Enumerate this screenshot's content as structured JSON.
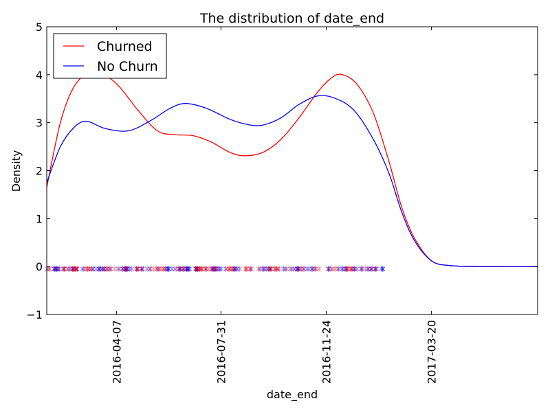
{
  "chart_data": {
    "type": "line",
    "title": "The distribution of date_end",
    "xlabel": "date_end",
    "ylabel": "Density",
    "xlim": [
      "2016-01-21",
      "2017-07-15"
    ],
    "ylim": [
      -1,
      5
    ],
    "x_ticks": [
      "2016-04-07",
      "2016-07-31",
      "2016-11-24",
      "2017-03-20"
    ],
    "y_ticks": [
      -1,
      0,
      1,
      2,
      3,
      4,
      5
    ],
    "legend_position": "upper-left",
    "grid": false,
    "rug_y": -0.05,
    "rug_range": [
      "2016-01-21",
      "2017-01-29"
    ],
    "series": [
      {
        "name": "Churned",
        "color": "#ff0000",
        "points": [
          [
            "2016-01-21",
            1.65
          ],
          [
            "2016-02-05",
            3.0
          ],
          [
            "2016-02-20",
            3.75
          ],
          [
            "2016-03-10",
            4.08
          ],
          [
            "2016-03-25",
            4.0
          ],
          [
            "2016-04-10",
            3.75
          ],
          [
            "2016-05-01",
            3.25
          ],
          [
            "2016-05-22",
            2.83
          ],
          [
            "2016-06-10",
            2.75
          ],
          [
            "2016-06-30",
            2.73
          ],
          [
            "2016-07-20",
            2.6
          ],
          [
            "2016-08-10",
            2.38
          ],
          [
            "2016-08-26",
            2.31
          ],
          [
            "2016-09-15",
            2.38
          ],
          [
            "2016-10-05",
            2.65
          ],
          [
            "2016-10-25",
            3.1
          ],
          [
            "2016-11-15",
            3.65
          ],
          [
            "2016-12-01",
            3.95
          ],
          [
            "2016-12-12",
            4.0
          ],
          [
            "2016-12-28",
            3.8
          ],
          [
            "2017-01-15",
            3.2
          ],
          [
            "2017-02-01",
            2.2
          ],
          [
            "2017-02-15",
            1.25
          ],
          [
            "2017-03-01",
            0.6
          ],
          [
            "2017-03-20",
            0.12
          ],
          [
            "2017-04-10",
            0.02
          ],
          [
            "2017-05-15",
            0.0
          ],
          [
            "2017-07-15",
            0.0
          ]
        ]
      },
      {
        "name": "No Churn",
        "color": "#0000ff",
        "points": [
          [
            "2016-01-21",
            1.75
          ],
          [
            "2016-02-05",
            2.5
          ],
          [
            "2016-02-20",
            2.9
          ],
          [
            "2016-03-05",
            3.03
          ],
          [
            "2016-03-25",
            2.88
          ],
          [
            "2016-04-20",
            2.83
          ],
          [
            "2016-05-15",
            3.05
          ],
          [
            "2016-06-05",
            3.3
          ],
          [
            "2016-06-22",
            3.4
          ],
          [
            "2016-07-15",
            3.3
          ],
          [
            "2016-08-10",
            3.07
          ],
          [
            "2016-08-30",
            2.96
          ],
          [
            "2016-09-15",
            2.95
          ],
          [
            "2016-10-05",
            3.1
          ],
          [
            "2016-10-25",
            3.38
          ],
          [
            "2016-11-15",
            3.56
          ],
          [
            "2016-12-05",
            3.5
          ],
          [
            "2016-12-25",
            3.25
          ],
          [
            "2017-01-15",
            2.65
          ],
          [
            "2017-02-01",
            1.95
          ],
          [
            "2017-02-15",
            1.15
          ],
          [
            "2017-03-01",
            0.55
          ],
          [
            "2017-03-20",
            0.12
          ],
          [
            "2017-04-10",
            0.02
          ],
          [
            "2017-05-15",
            0.0
          ],
          [
            "2017-07-15",
            0.0
          ]
        ]
      }
    ]
  }
}
